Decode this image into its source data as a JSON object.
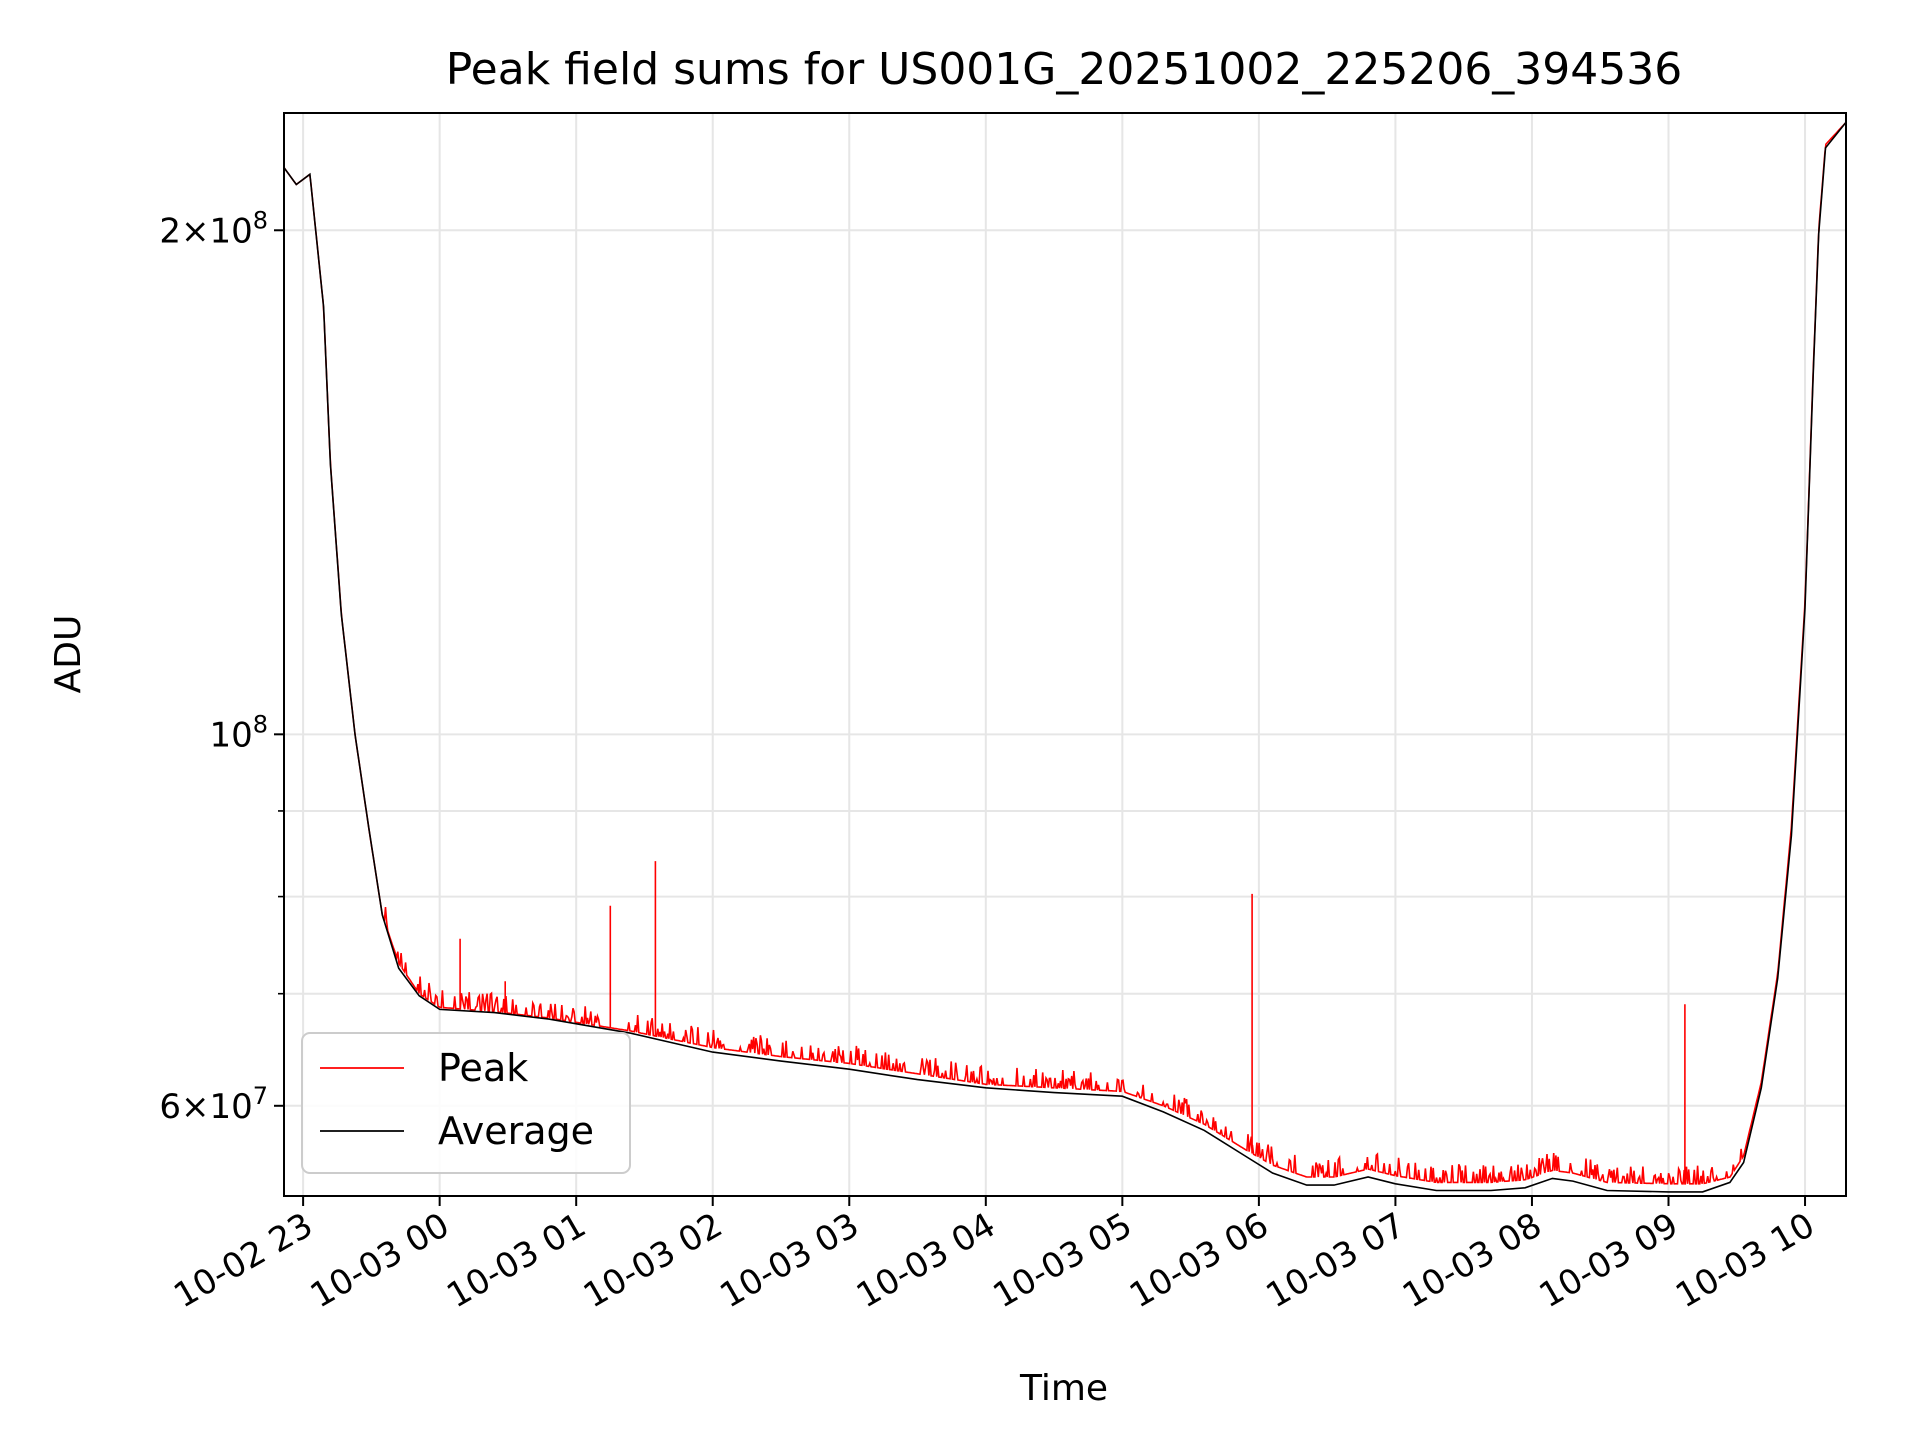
{
  "chart_data": {
    "type": "line",
    "title": "Peak field sums for US001G_20251002_225206_394536",
    "xlabel": "Time",
    "ylabel": "ADU",
    "yscale": "log",
    "ylim": [
      53000000,
      235000000
    ],
    "xlim_hours": [
      -0.14,
      11.3
    ],
    "grid": true,
    "legend_position": "lower-left",
    "x_ticks": [
      {
        "hour": 0,
        "label": "10-02 23"
      },
      {
        "hour": 1,
        "label": "10-03 00"
      },
      {
        "hour": 2,
        "label": "10-03 01"
      },
      {
        "hour": 3,
        "label": "10-03 02"
      },
      {
        "hour": 4,
        "label": "10-03 03"
      },
      {
        "hour": 5,
        "label": "10-03 04"
      },
      {
        "hour": 6,
        "label": "10-03 05"
      },
      {
        "hour": 7,
        "label": "10-03 06"
      },
      {
        "hour": 8,
        "label": "10-03 07"
      },
      {
        "hour": 9,
        "label": "10-03 08"
      },
      {
        "hour": 10,
        "label": "10-03 09"
      },
      {
        "hour": 11,
        "label": "10-03 10"
      }
    ],
    "y_major_ticks": [
      {
        "value": 60000000,
        "base": "6",
        "sup": "7",
        "has_mult": true
      },
      {
        "value": 100000000,
        "base": "10",
        "sup": "8",
        "has_mult": false
      },
      {
        "value": 200000000,
        "base": "2",
        "sup": "8",
        "has_mult": true
      }
    ],
    "y_minor_ticks": [
      70000000,
      80000000,
      90000000
    ],
    "series": [
      {
        "name": "Peak",
        "color": "#ff0000",
        "baseline": [
          [
            -0.14,
            218000000
          ],
          [
            -0.05,
            213000000
          ],
          [
            0.05,
            216000000
          ],
          [
            0.15,
            180000000
          ],
          [
            0.2,
            145000000
          ],
          [
            0.28,
            118000000
          ],
          [
            0.38,
            100000000
          ],
          [
            0.48,
            88000000
          ],
          [
            0.58,
            78000000
          ],
          [
            0.7,
            73000000
          ],
          [
            0.85,
            70000000
          ],
          [
            1.0,
            68700000
          ],
          [
            1.4,
            68300000
          ],
          [
            1.8,
            67700000
          ],
          [
            2.4,
            66500000
          ],
          [
            3.0,
            65000000
          ],
          [
            3.5,
            64200000
          ],
          [
            4.0,
            63600000
          ],
          [
            4.5,
            62700000
          ],
          [
            5.0,
            61800000
          ],
          [
            5.5,
            61500000
          ],
          [
            6.0,
            61200000
          ],
          [
            6.3,
            60000000
          ],
          [
            6.6,
            58500000
          ],
          [
            6.9,
            56500000
          ],
          [
            7.1,
            55300000
          ],
          [
            7.35,
            54400000
          ],
          [
            7.55,
            54400000
          ],
          [
            7.8,
            55000000
          ],
          [
            8.0,
            54500000
          ],
          [
            8.3,
            54000000
          ],
          [
            8.7,
            54000000
          ],
          [
            8.95,
            54200000
          ],
          [
            9.15,
            54900000
          ],
          [
            9.3,
            54700000
          ],
          [
            9.55,
            54000000
          ],
          [
            10.0,
            53900000
          ],
          [
            10.25,
            53900000
          ],
          [
            10.45,
            54400000
          ],
          [
            10.55,
            56000000
          ],
          [
            10.68,
            62000000
          ],
          [
            10.8,
            72000000
          ],
          [
            10.9,
            88000000
          ],
          [
            11.0,
            120000000
          ],
          [
            11.06,
            165000000
          ],
          [
            11.1,
            200000000
          ],
          [
            11.15,
            225000000
          ],
          [
            11.3,
            232000000
          ]
        ],
        "spikes": [
          [
            1.15,
            75500000
          ],
          [
            1.48,
            71200000
          ],
          [
            2.25,
            79000000
          ],
          [
            2.58,
            84000000
          ],
          [
            6.95,
            80300000
          ],
          [
            10.12,
            69000000
          ]
        ]
      },
      {
        "name": "Average",
        "color": "#000000",
        "values": [
          [
            -0.14,
            218000000
          ],
          [
            -0.05,
            213000000
          ],
          [
            0.05,
            216000000
          ],
          [
            0.15,
            180000000
          ],
          [
            0.2,
            145000000
          ],
          [
            0.28,
            118000000
          ],
          [
            0.38,
            100000000
          ],
          [
            0.48,
            88000000
          ],
          [
            0.58,
            78000000
          ],
          [
            0.7,
            72500000
          ],
          [
            0.85,
            69800000
          ],
          [
            1.0,
            68500000
          ],
          [
            1.4,
            68200000
          ],
          [
            1.8,
            67600000
          ],
          [
            2.4,
            66300000
          ],
          [
            3.0,
            64600000
          ],
          [
            3.5,
            63800000
          ],
          [
            4.0,
            63100000
          ],
          [
            4.5,
            62200000
          ],
          [
            5.0,
            61500000
          ],
          [
            5.5,
            61100000
          ],
          [
            6.0,
            60800000
          ],
          [
            6.3,
            59500000
          ],
          [
            6.6,
            58000000
          ],
          [
            6.9,
            56000000
          ],
          [
            7.1,
            54700000
          ],
          [
            7.35,
            53800000
          ],
          [
            7.55,
            53800000
          ],
          [
            7.8,
            54400000
          ],
          [
            8.0,
            53900000
          ],
          [
            8.3,
            53400000
          ],
          [
            8.7,
            53400000
          ],
          [
            8.95,
            53600000
          ],
          [
            9.15,
            54300000
          ],
          [
            9.3,
            54100000
          ],
          [
            9.55,
            53400000
          ],
          [
            10.0,
            53300000
          ],
          [
            10.25,
            53300000
          ],
          [
            10.45,
            54000000
          ],
          [
            10.55,
            55500000
          ],
          [
            10.68,
            61500000
          ],
          [
            10.8,
            71500000
          ],
          [
            10.9,
            87000000
          ],
          [
            11.0,
            119000000
          ],
          [
            11.06,
            164000000
          ],
          [
            11.1,
            199000000
          ],
          [
            11.15,
            224000000
          ],
          [
            11.3,
            232000000
          ]
        ]
      }
    ]
  }
}
